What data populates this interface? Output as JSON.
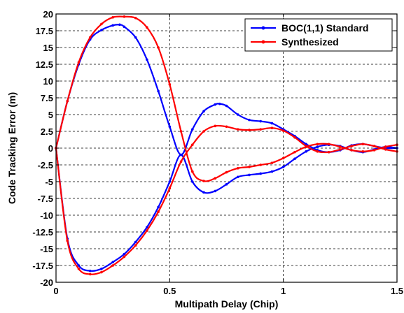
{
  "chart_data": {
    "type": "line",
    "title": "",
    "xlabel": "Multipath Delay (Chip)",
    "ylabel": "Code Tracking Error (m)",
    "xlim": [
      0,
      1.5
    ],
    "ylim": [
      -20,
      20
    ],
    "x_ticks": [
      0,
      0.5,
      1,
      1.5
    ],
    "x_tick_labels": [
      "0",
      "0.5",
      "1",
      "1.5"
    ],
    "y_ticks": [
      -20,
      -17.5,
      -15,
      -12.5,
      -10,
      -7.5,
      -5,
      -2.5,
      0,
      2.5,
      5,
      7.5,
      10,
      12.5,
      15,
      17.5,
      20
    ],
    "y_tick_labels": [
      "-20",
      "-17.5",
      "-15",
      "-12.5",
      "-10",
      "-7.5",
      "-5",
      "-2.5",
      "0",
      "2.5",
      "5",
      "7.5",
      "10",
      "12.5",
      "15",
      "17.5",
      "20"
    ],
    "grid": true,
    "legend_position": "top-right",
    "series": [
      {
        "name": "BOC(1,1) Standard",
        "color": "#0000ff",
        "marker": "point",
        "envelope": "upper",
        "x": [
          0,
          0.05,
          0.1,
          0.15,
          0.2,
          0.25,
          0.28,
          0.3,
          0.35,
          0.4,
          0.45,
          0.5,
          0.55,
          0.6,
          0.65,
          0.7,
          0.72,
          0.75,
          0.8,
          0.85,
          0.9,
          0.95,
          1.0,
          1.05,
          1.1,
          1.15,
          1.2,
          1.25,
          1.3,
          1.35,
          1.4,
          1.45,
          1.5
        ],
        "y": [
          0,
          7,
          12.5,
          16.2,
          17.6,
          18.3,
          18.4,
          18.1,
          16.5,
          13.2,
          8.5,
          3.2,
          -1.0,
          2.8,
          5.5,
          6.5,
          6.6,
          6.3,
          5.0,
          4.2,
          4.0,
          3.7,
          2.8,
          1.8,
          0.6,
          -0.3,
          -0.6,
          -0.3,
          0.4,
          0.6,
          0.3,
          0.0,
          0.0
        ]
      },
      {
        "name": "BOC(1,1) Standard",
        "color": "#0000ff",
        "marker": "point",
        "envelope": "lower",
        "x": [
          0,
          0.05,
          0.1,
          0.15,
          0.2,
          0.25,
          0.3,
          0.35,
          0.4,
          0.45,
          0.5,
          0.55,
          0.6,
          0.65,
          0.7,
          0.75,
          0.8,
          0.85,
          0.9,
          0.95,
          1.0,
          1.05,
          1.1,
          1.15,
          1.2,
          1.25,
          1.3,
          1.35,
          1.4,
          1.45,
          1.5
        ],
        "y": [
          0,
          -13.5,
          -17.5,
          -18.3,
          -18.0,
          -17.0,
          -15.8,
          -14.0,
          -11.8,
          -8.8,
          -5.0,
          -1.0,
          -5.0,
          -6.6,
          -6.4,
          -5.4,
          -4.3,
          -4.0,
          -3.8,
          -3.5,
          -2.8,
          -1.6,
          -0.5,
          0.2,
          0.5,
          0.3,
          -0.3,
          -0.6,
          -0.2,
          0.2,
          0.0
        ]
      },
      {
        "name": "Synthesized",
        "color": "#ff0000",
        "marker": "point",
        "envelope": "upper",
        "x": [
          0,
          0.05,
          0.1,
          0.15,
          0.2,
          0.25,
          0.3,
          0.35,
          0.4,
          0.45,
          0.5,
          0.55,
          0.6,
          0.65,
          0.7,
          0.75,
          0.8,
          0.85,
          0.9,
          0.95,
          1.0,
          1.05,
          1.1,
          1.15,
          1.2,
          1.25,
          1.3,
          1.35,
          1.4,
          1.45,
          1.5
        ],
        "y": [
          0,
          7.0,
          12.8,
          16.5,
          18.5,
          19.5,
          19.6,
          19.4,
          18.0,
          15.0,
          9.5,
          2.5,
          -3.5,
          -4.9,
          -4.5,
          -3.6,
          -3.0,
          -2.8,
          -2.5,
          -2.2,
          -1.5,
          -0.6,
          0.2,
          0.6,
          0.6,
          0.2,
          -0.3,
          -0.5,
          -0.3,
          0.2,
          0.5
        ]
      },
      {
        "name": "Synthesized",
        "color": "#ff0000",
        "marker": "point",
        "envelope": "lower",
        "x": [
          0,
          0.05,
          0.1,
          0.15,
          0.2,
          0.25,
          0.3,
          0.35,
          0.4,
          0.45,
          0.5,
          0.55,
          0.6,
          0.65,
          0.7,
          0.75,
          0.8,
          0.85,
          0.9,
          0.95,
          1.0,
          1.05,
          1.1,
          1.15,
          1.2,
          1.25,
          1.3,
          1.35,
          1.4,
          1.45,
          1.5
        ],
        "y": [
          0,
          -13.8,
          -18.0,
          -18.8,
          -18.5,
          -17.5,
          -16.2,
          -14.5,
          -12.3,
          -9.5,
          -6.0,
          -2.0,
          0.5,
          2.5,
          3.3,
          3.2,
          2.8,
          2.7,
          2.8,
          3.0,
          2.6,
          1.6,
          0.3,
          -0.5,
          -0.6,
          -0.2,
          0.3,
          0.6,
          0.3,
          -0.2,
          -0.5
        ]
      }
    ],
    "legend": [
      {
        "label": "BOC(1,1) Standard",
        "color": "#0000ff"
      },
      {
        "label": "Synthesized",
        "color": "#ff0000"
      }
    ]
  }
}
